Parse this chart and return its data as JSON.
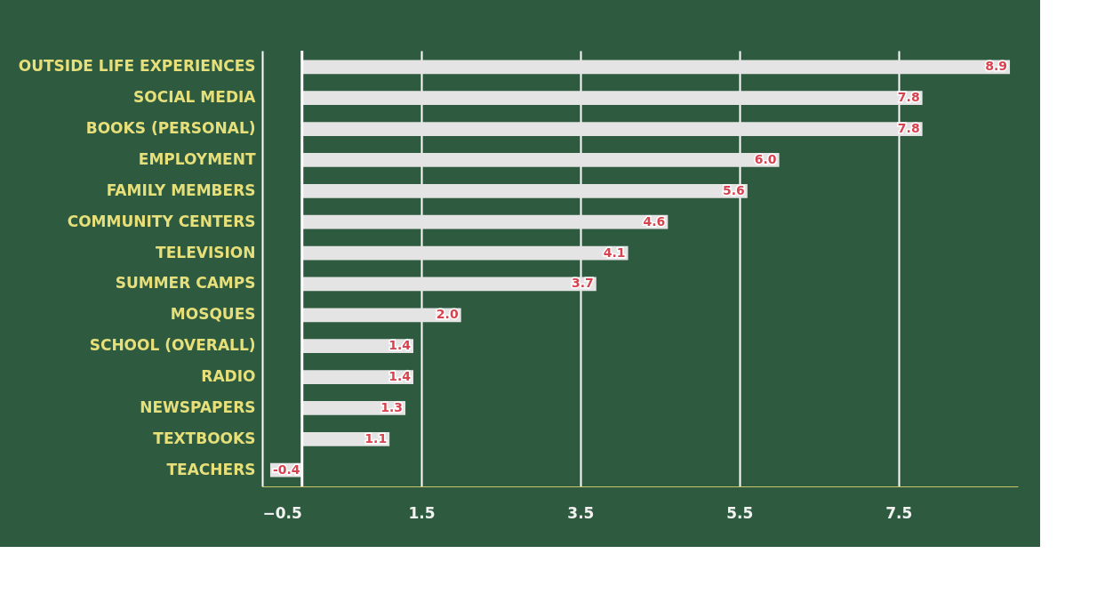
{
  "chart_data": {
    "type": "bar",
    "orientation": "horizontal",
    "categories": [
      "OUTSIDE LIFE EXPERIENCES",
      "SOCIAL MEDIA",
      "BOOKS (PERSONAL)",
      "EMPLOYMENT",
      "FAMILY MEMBERS",
      "COMMUNITY CENTERS",
      "TELEVISION",
      "SUMMER CAMPS",
      "MOSQUES",
      "SCHOOL (OVERALL)",
      "RADIO",
      "NEWSPAPERS",
      "TEXTBOOKS",
      "TEACHERS"
    ],
    "values": [
      8.9,
      7.8,
      7.8,
      6.0,
      5.6,
      4.6,
      4.1,
      3.7,
      2.0,
      1.4,
      1.4,
      1.3,
      1.1,
      -0.4
    ],
    "value_labels": [
      "8.9",
      "7.8",
      "7.8",
      "6.0",
      "5.6",
      "4.6",
      "4.1",
      "3.7",
      "2.0",
      "1.4",
      "1.4",
      "1.3",
      "1.1",
      "-0.4"
    ],
    "color": "#e4e4e4",
    "xlim": [
      -0.5,
      9.0
    ],
    "xticks": [
      -0.5,
      1.5,
      3.5,
      5.5,
      7.5
    ],
    "grid": "x",
    "ref_lines": [
      {
        "axis": "x",
        "value": 0,
        "color": "#ffffff"
      }
    ]
  }
}
